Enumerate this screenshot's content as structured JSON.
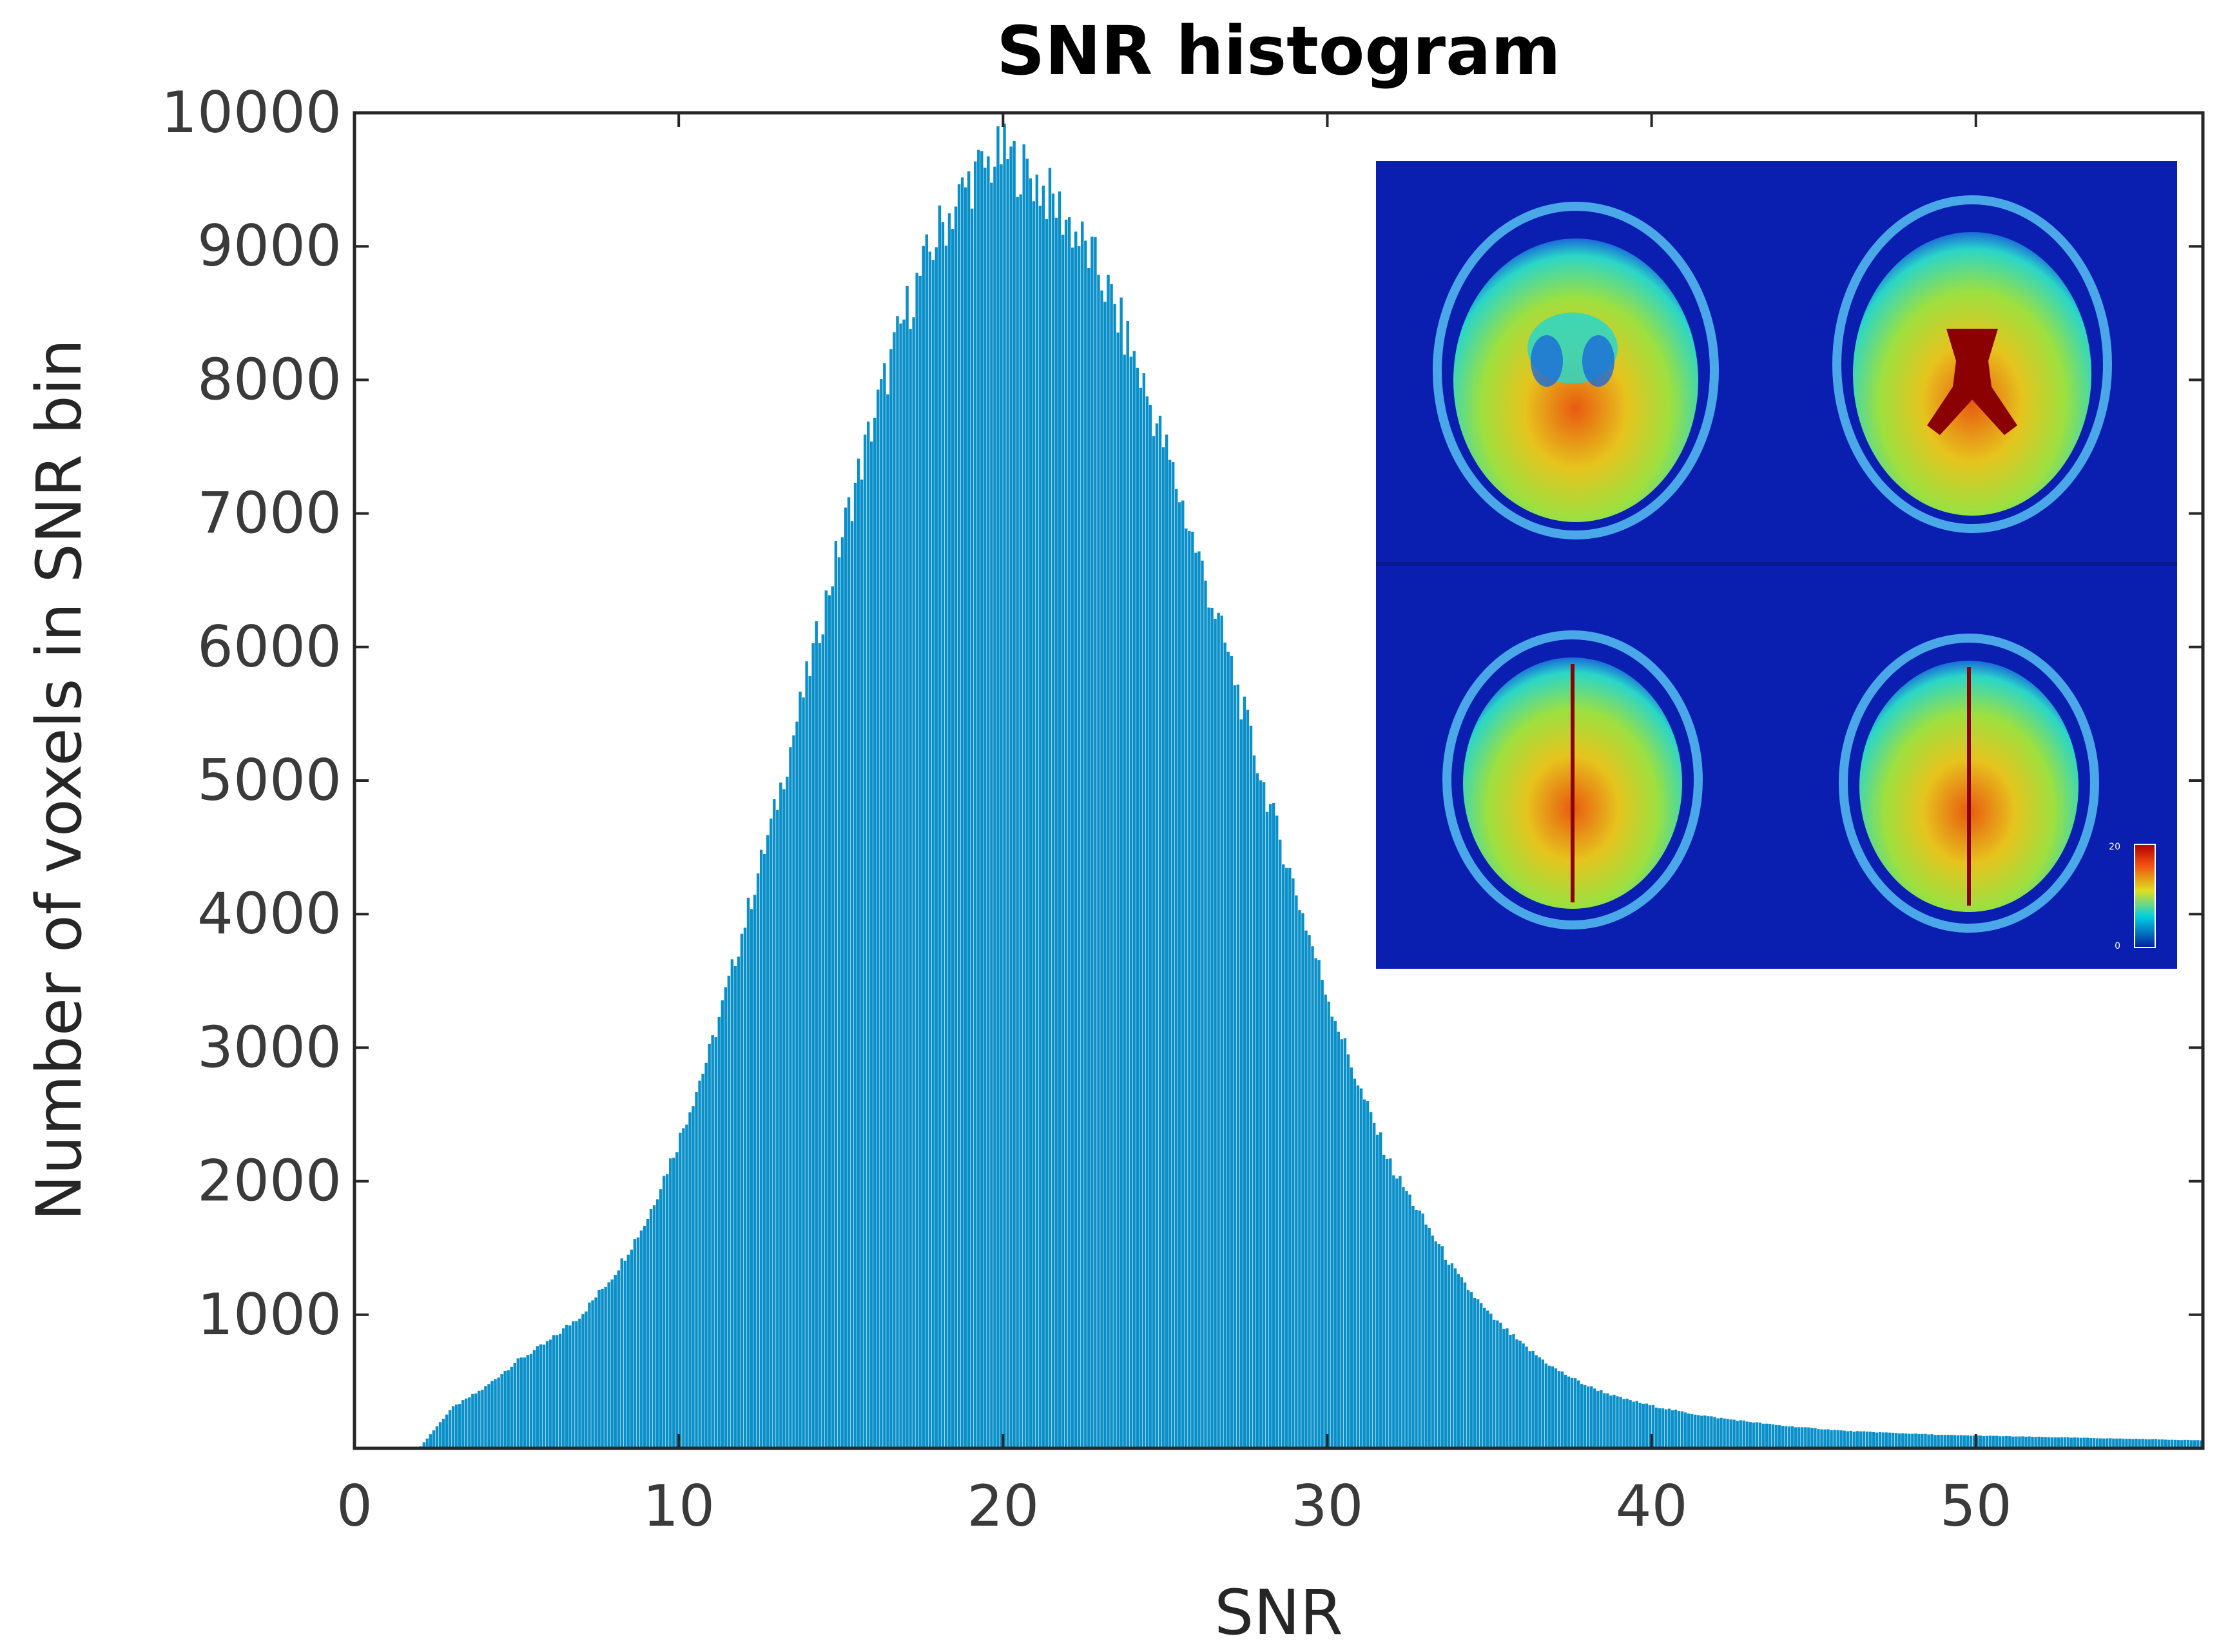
{
  "chart_data": {
    "type": "bar",
    "title": "SNR histogram",
    "xlabel": "SNR",
    "ylabel": "Number of voxels in SNR bin",
    "xlim": [
      0,
      57
    ],
    "ylim": [
      0,
      10000
    ],
    "x_ticks": [
      0,
      10,
      20,
      30,
      40,
      50
    ],
    "y_ticks": [
      1000,
      2000,
      3000,
      4000,
      5000,
      6000,
      7000,
      8000,
      9000,
      10000
    ],
    "grid": false,
    "legend": "none",
    "bin_width": 0.1,
    "bar_color": "#0a8fc8",
    "x": [
      2,
      3,
      4,
      5,
      6,
      7,
      8,
      9,
      10,
      11,
      12,
      13,
      14,
      15,
      16,
      17,
      18,
      19,
      20,
      21,
      22,
      23,
      24,
      25,
      26,
      27,
      28,
      29,
      30,
      31,
      32,
      33,
      34,
      35,
      36,
      37,
      38,
      39,
      40,
      41,
      42,
      43,
      44,
      45,
      46,
      47,
      48,
      49,
      50,
      51,
      52,
      53,
      54,
      55,
      56,
      57
    ],
    "values": [
      0,
      300,
      450,
      650,
      800,
      1000,
      1300,
      1700,
      2300,
      3000,
      3900,
      4800,
      5800,
      6800,
      7700,
      8500,
      9100,
      9500,
      9700,
      9500,
      9200,
      8800,
      8200,
      7500,
      6700,
      5900,
      5000,
      4200,
      3400,
      2700,
      2100,
      1700,
      1300,
      1000,
      780,
      600,
      470,
      380,
      320,
      270,
      230,
      200,
      170,
      150,
      130,
      120,
      110,
      100,
      95,
      90,
      85,
      80,
      75,
      70,
      65,
      60
    ]
  },
  "inset": {
    "description_free": true,
    "colors": {
      "background": "#0a1fb0",
      "skull": "#4aa8e8",
      "tissue_low": "#2de0d0",
      "tissue_mid": "#e6e62a",
      "tissue_high": "#e03010",
      "ventricle": "#8b0000"
    },
    "colorbar_max_label": "20",
    "colorbar_min_label": "0"
  }
}
